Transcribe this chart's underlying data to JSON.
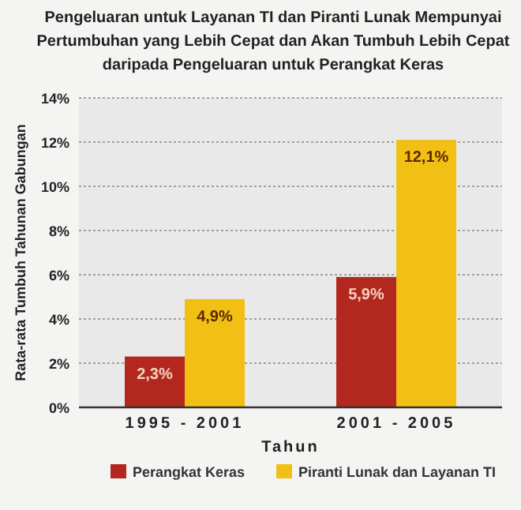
{
  "chart_data": {
    "type": "bar",
    "title": "Pengeluaran untuk Layanan TI dan Piranti Lunak Mempunyai\nPertumbuhan yang Lebih Cepat dan Akan Tumbuh Lebih Cepat\ndaripada Pengeluaran untuk Perangkat Keras",
    "xlabel": "Tahun",
    "ylabel": "Rata-rata Tumbuh Tahunan Gabungan",
    "categories": [
      "1995 - 2001",
      "2001 - 2005"
    ],
    "series": [
      {
        "name": "Perangkat Keras",
        "color": "#b3281e",
        "values": [
          2.3,
          5.9
        ],
        "value_labels": [
          "2,3%",
          "5,9%"
        ]
      },
      {
        "name": "Piranti Lunak dan Layanan TI",
        "color": "#f2c014",
        "values": [
          4.9,
          12.1
        ],
        "value_labels": [
          "4,9%",
          "12,1%"
        ]
      }
    ],
    "ylim": [
      0,
      14
    ],
    "yticks": [
      {
        "value": 0,
        "label": "0%"
      },
      {
        "value": 2,
        "label": "2%"
      },
      {
        "value": 4,
        "label": "4%"
      },
      {
        "value": 6,
        "label": "6%"
      },
      {
        "value": 8,
        "label": "8%"
      },
      {
        "value": 10,
        "label": "10%"
      },
      {
        "value": 12,
        "label": "12%"
      },
      {
        "value": 14,
        "label": "14%"
      }
    ],
    "grid": "y",
    "legend": "bottom"
  }
}
